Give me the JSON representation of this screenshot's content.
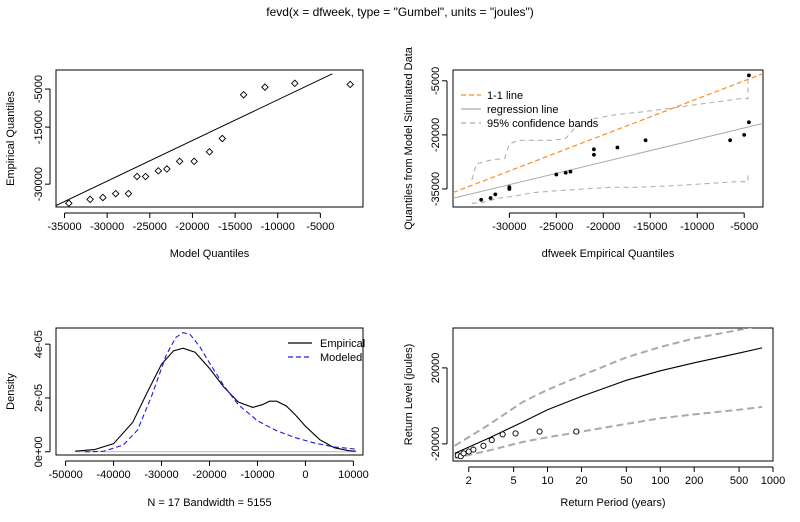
{
  "title": "fevd(x = dfweek, type = \"Gumbel\", units = \"joules\")",
  "colors": {
    "modeled": "#1a1ae6",
    "oneone": "#ff8c1a",
    "regression": "#aaaaaa",
    "bands": "#aaaaaa",
    "zero": "#bbbbbb"
  },
  "chart_data": [
    {
      "id": "qq1",
      "type": "scatter",
      "xlabel": "Model Quantiles",
      "ylabel": "Empirical Quantiles",
      "xlim": [
        -36000,
        0
      ],
      "ylim": [
        -36000,
        0
      ],
      "xticks": [
        -35000,
        -30000,
        -25000,
        -20000,
        -15000,
        -10000,
        -5000
      ],
      "yticks": [
        -5000,
        -15000,
        -30000
      ],
      "ytick_labels": [
        "-5000",
        "-15000",
        "-30000"
      ],
      "points": {
        "x": [
          -34500,
          -32000,
          -30500,
          -29000,
          -27500,
          -26500,
          -25500,
          -24000,
          -23000,
          -21500,
          -19800,
          -18000,
          -16500,
          -14000,
          -11500,
          -8000,
          -1500
        ],
        "y": [
          -35000,
          -34000,
          -33500,
          -32500,
          -32500,
          -28000,
          -28000,
          -26500,
          -26000,
          -24000,
          -24000,
          -21500,
          -18000,
          -6500,
          -4500,
          -3500,
          -3800
        ]
      },
      "line": {
        "x": [
          -36000,
          -3600
        ],
        "y": [
          -35600,
          -1000
        ]
      }
    },
    {
      "id": "qq2",
      "type": "scatter",
      "xlabel": "dfweek Empirical Quantiles",
      "ylabel": "Quantiles from Model Simulated Data",
      "xlim": [
        -36000,
        -3000
      ],
      "ylim": [
        -40000,
        -2000
      ],
      "xticks": [
        -30000,
        -25000,
        -20000,
        -15000,
        -10000,
        -5000
      ],
      "yticks": [
        -5000,
        -20000,
        -35000
      ],
      "ytick_labels": [
        "-5000",
        "-20000",
        "-35000"
      ],
      "legend": [
        "1-1 line",
        "regression line",
        "95% confidence bands"
      ],
      "points": {
        "x": [
          -33000,
          -32000,
          -31500,
          -30000,
          -30000,
          -25000,
          -24000,
          -23500,
          -21000,
          -21000,
          -18500,
          -15500,
          -6500,
          -5000,
          -4500,
          -4500
        ],
        "y": [
          -38000,
          -37500,
          -36500,
          -34500,
          -35000,
          -31000,
          -30500,
          -30200,
          -25500,
          -24000,
          -23500,
          -21500,
          -21500,
          -20000,
          -16500,
          -3500
        ]
      },
      "oneone": {
        "x": [
          -36000,
          -3000
        ],
        "y": [
          -36000,
          -3000
        ]
      },
      "regression": {
        "x": [
          -36000,
          -3000
        ],
        "y": [
          -37600,
          -16800
        ]
      },
      "band_upper": {
        "x": [
          -34000,
          -33500,
          -32000,
          -30500,
          -30000,
          -29000,
          -25500,
          -24000,
          -23000,
          -21500,
          -21000,
          -19000,
          -15500,
          -5500,
          -4600,
          -4600
        ],
        "y": [
          -32500,
          -28000,
          -27000,
          -26500,
          -22500,
          -21500,
          -21500,
          -21000,
          -18000,
          -16500,
          -15500,
          -14500,
          -13500,
          -10000,
          -10000,
          -4500
        ]
      },
      "band_lower": {
        "x": [
          -34000,
          -33000,
          -31000,
          -29500,
          -27500,
          -25000,
          -22000,
          -19000,
          -16000,
          -12000,
          -9000,
          -6000,
          -4600,
          -4600
        ],
        "y": [
          -39000,
          -38800,
          -37500,
          -37000,
          -36000,
          -35500,
          -35000,
          -34500,
          -34500,
          -34000,
          -33500,
          -33000,
          -33000,
          -30500
        ]
      }
    },
    {
      "id": "density",
      "type": "line",
      "ylabel": "Density",
      "xlabel": "N = 17   Bandwidth = 5155",
      "xlim": [
        -52000,
        12000
      ],
      "ylim": [
        -1.2e-06,
        4.6e-05
      ],
      "xticks": [
        -50000,
        -40000,
        -30000,
        -20000,
        -10000,
        0,
        10000
      ],
      "yticks": [
        0,
        2e-05,
        4e-05
      ],
      "ytick_labels": [
        "0e+00",
        "2e-05",
        "4e-05"
      ],
      "legend": [
        "Empirical",
        "Modeled"
      ],
      "series": [
        {
          "name": "Empirical",
          "x": [
            -48000,
            -44000,
            -40000,
            -36000,
            -33000,
            -30000,
            -27500,
            -25500,
            -23000,
            -20000,
            -17000,
            -14000,
            -11000,
            -9000,
            -7500,
            -6000,
            -4000,
            -2000,
            0,
            3000,
            6000,
            9000,
            10500
          ],
          "y": [
            2e-07,
            8e-07,
            3e-06,
            1.1e-05,
            2.2e-05,
            3.25e-05,
            3.75e-05,
            3.85e-05,
            3.7e-05,
            3.1e-05,
            2.4e-05,
            1.85e-05,
            1.65e-05,
            1.75e-05,
            1.88e-05,
            1.88e-05,
            1.7e-05,
            1.35e-05,
            9.5e-06,
            4.5e-06,
            1.5e-06,
            4e-07,
            2e-07
          ]
        },
        {
          "name": "Modeled",
          "x": [
            -46000,
            -42000,
            -38000,
            -35000,
            -32000,
            -29000,
            -27000,
            -25500,
            -24000,
            -22000,
            -20000,
            -17000,
            -14000,
            -10000,
            -6000,
            -2000,
            2000,
            6000,
            10500
          ],
          "y": [
            0,
            2e-07,
            2.5e-06,
            8e-06,
            2.1e-05,
            3.6e-05,
            4.25e-05,
            4.43e-05,
            4.35e-05,
            3.9e-05,
            3.3e-05,
            2.45e-05,
            1.75e-05,
            1.15e-05,
            7.8e-06,
            5.2e-06,
            3.2e-06,
            1.8e-06,
            1e-06
          ]
        }
      ]
    },
    {
      "id": "return",
      "type": "line",
      "xlabel": "Return Period (years)",
      "ylabel": "Return Level (joules)",
      "xscale": "log",
      "xlim": [
        1.45,
        1000
      ],
      "ylim": [
        -29000,
        41000
      ],
      "xticks": [
        2,
        5,
        10,
        20,
        50,
        100,
        200,
        500,
        1000
      ],
      "yticks": [
        20000,
        -20000
      ],
      "ytick_labels": [
        "20000",
        "-20000"
      ],
      "points": {
        "x": [
          1.6,
          1.7,
          1.8,
          2.0,
          2.2,
          2.7,
          3.2,
          4.0,
          5.2,
          8.5,
          18
        ],
        "y": [
          -26000,
          -26500,
          -25000,
          -24000,
          -23000,
          -21000,
          -18000,
          -15000,
          -14500,
          -13500,
          -13500
        ]
      },
      "center": {
        "x": [
          1.5,
          3,
          6,
          10,
          20,
          50,
          100,
          200,
          500,
          800
        ],
        "y": [
          -25000,
          -17000,
          -8500,
          -2000,
          5000,
          13500,
          18500,
          22700,
          27800,
          30500
        ]
      },
      "upper": {
        "x": [
          1.5,
          3,
          6,
          10,
          20,
          50,
          100,
          200,
          500,
          800
        ],
        "y": [
          -21000,
          -10000,
          2000,
          8500,
          16000,
          25500,
          31000,
          35500,
          40000,
          42500
        ]
      },
      "lower": {
        "x": [
          1.5,
          3,
          6,
          10,
          20,
          50,
          100,
          200,
          500,
          800
        ],
        "y": [
          -27500,
          -23500,
          -19000,
          -16500,
          -13500,
          -9500,
          -6500,
          -4500,
          -2000,
          -500
        ]
      }
    }
  ]
}
